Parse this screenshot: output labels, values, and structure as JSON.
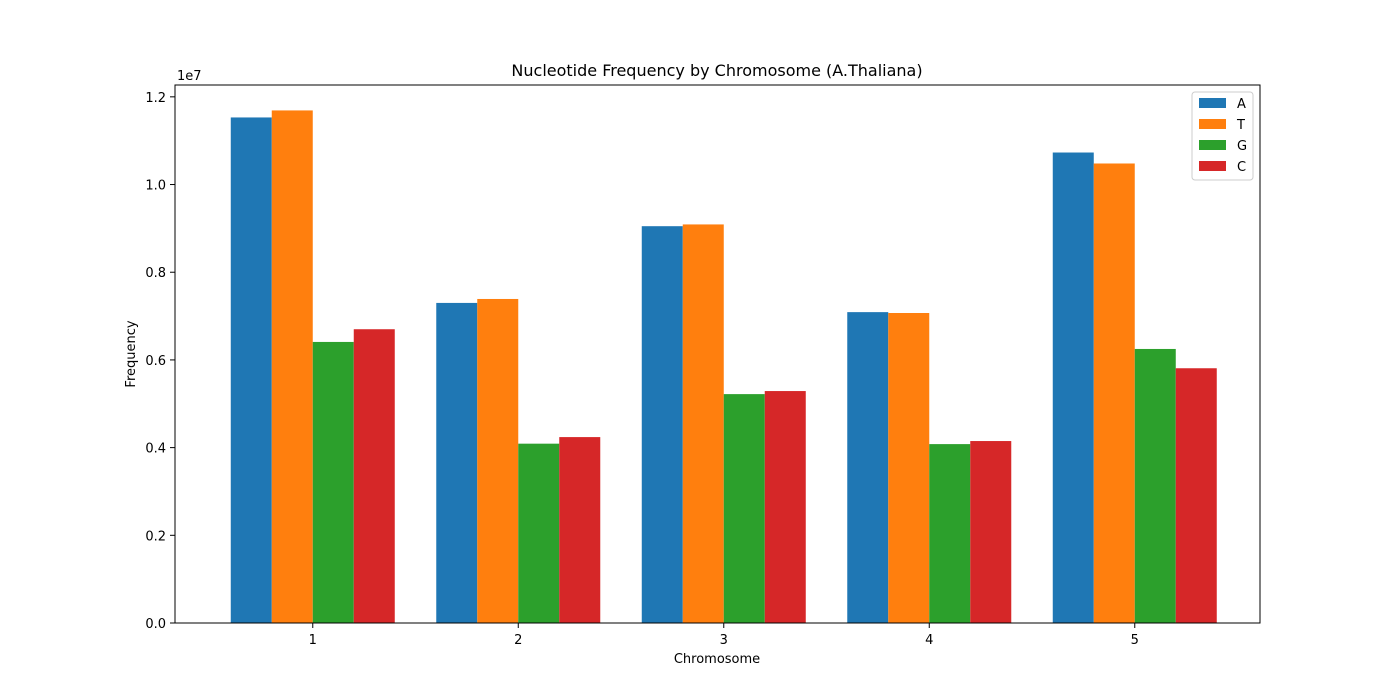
{
  "chart_data": {
    "type": "bar",
    "title": "Nucleotide Frequency by Chromosome (A.Thaliana)",
    "xlabel": "Chromosome",
    "ylabel": "Frequency",
    "y_offset_label": "1e7",
    "categories": [
      "1",
      "2",
      "3",
      "4",
      "5"
    ],
    "series": [
      {
        "name": "A",
        "color": "#1f77b4",
        "values": [
          11530000,
          7300000,
          9050000,
          7090000,
          10730000
        ]
      },
      {
        "name": "T",
        "color": "#ff7f0e",
        "values": [
          11690000,
          7390000,
          9090000,
          7070000,
          10480000
        ]
      },
      {
        "name": "G",
        "color": "#2ca02c",
        "values": [
          6410000,
          4090000,
          5220000,
          4080000,
          6250000
        ]
      },
      {
        "name": "C",
        "color": "#d62728",
        "values": [
          6700000,
          4240000,
          5290000,
          4150000,
          5810000
        ]
      }
    ],
    "y_ticks": [
      {
        "value": 0,
        "label": "0.0"
      },
      {
        "value": 2000000,
        "label": "0.2"
      },
      {
        "value": 4000000,
        "label": "0.4"
      },
      {
        "value": 6000000,
        "label": "0.6"
      },
      {
        "value": 8000000,
        "label": "0.8"
      },
      {
        "value": 10000000,
        "label": "1.0"
      },
      {
        "value": 12000000,
        "label": "1.2"
      }
    ],
    "ylim": [
      0,
      12270000
    ],
    "grid": false,
    "legend_position": "top-right"
  }
}
